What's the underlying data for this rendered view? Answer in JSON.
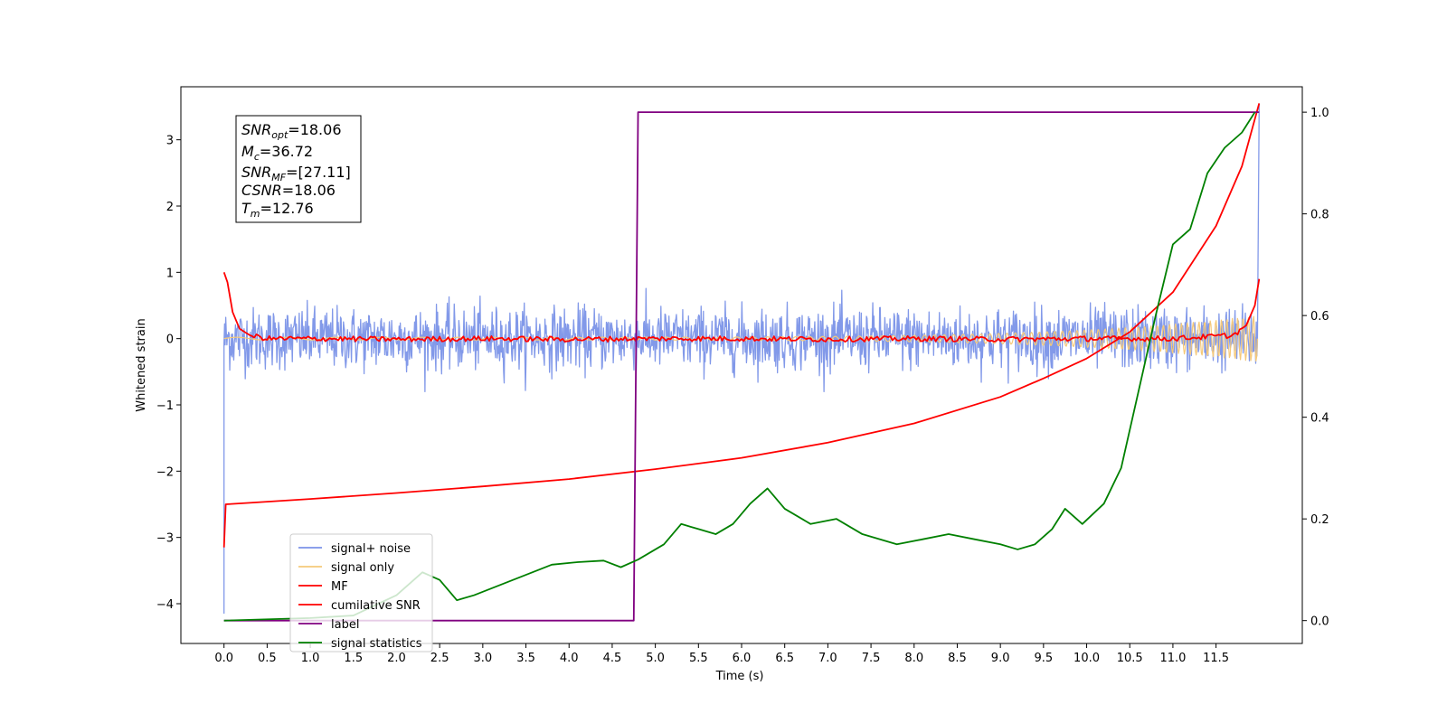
{
  "chart_data": {
    "type": "line",
    "xlabel": "Time (s)",
    "ylabel": "Whitened strain",
    "xlim": [
      -0.5,
      12.5
    ],
    "ylim": [
      -4.6,
      3.8
    ],
    "y2lim": [
      -0.045,
      1.05
    ],
    "x_ticks": [
      "0.0",
      "0.5",
      "1.0",
      "1.5",
      "2.0",
      "2.5",
      "3.0",
      "3.5",
      "4.0",
      "4.5",
      "5.0",
      "5.5",
      "6.0",
      "6.5",
      "7.0",
      "7.5",
      "8.0",
      "8.5",
      "9.0",
      "9.5",
      "10.0",
      "10.5",
      "11.0",
      "11.5"
    ],
    "y_ticks": [
      "−4",
      "−3",
      "−2",
      "−1",
      "0",
      "1",
      "2",
      "3"
    ],
    "y2_ticks": [
      "0.0",
      "0.2",
      "0.4",
      "0.6",
      "0.8",
      "1.0"
    ],
    "annotation": {
      "lines": [
        {
          "base": "SNR",
          "sub": "opt",
          "value": "=18.06"
        },
        {
          "base": "M",
          "sub": "c",
          "value": "=36.72"
        },
        {
          "base": "SNR",
          "sub": "MF",
          "value": "=[27.11]"
        },
        {
          "base": "CSNR",
          "sub": "",
          "value": "=18.06"
        },
        {
          "base": "T",
          "sub": "m",
          "value": "=12.76"
        }
      ]
    },
    "legend": {
      "placement": "lower-left",
      "entries": [
        {
          "label": "signal+ noise",
          "color": "#7b93e8"
        },
        {
          "label": "signal only",
          "color": "#f5c97a"
        },
        {
          "label": "MF",
          "color": "#ff0000"
        },
        {
          "label": "cumilative SNR",
          "color": "#ff0000"
        },
        {
          "label": "label",
          "color": "#800080"
        },
        {
          "label": "signal statistics",
          "color": "#008000"
        }
      ]
    },
    "series": [
      {
        "name": "signal+ noise",
        "axis": "left",
        "color": "#7b93e8",
        "start": {
          "x": 0.0,
          "y": -4.15
        },
        "band": {
          "x": [
            0.0,
            11.98
          ],
          "amplitude": 0.55
        },
        "end": {
          "x": 12.0,
          "y": 3.55
        }
      },
      {
        "name": "signal only",
        "axis": "left",
        "color": "#f5c97a",
        "chirp": {
          "x": [
            0.0,
            11.98
          ],
          "amplitude_start": 0.02,
          "amplitude_end": 0.35
        }
      },
      {
        "name": "MF",
        "axis": "left",
        "color": "#ff0000",
        "x": [
          0.0,
          0.04,
          0.1,
          0.18,
          0.3,
          0.5,
          1.0,
          2.0,
          3.0,
          4.0,
          5.0,
          6.0,
          7.0,
          8.0,
          9.0,
          10.0,
          11.0,
          11.7,
          11.85,
          11.95,
          12.0
        ],
        "y": [
          1.0,
          0.85,
          0.4,
          0.15,
          0.05,
          0.0,
          0.0,
          -0.01,
          0.0,
          -0.01,
          0.0,
          0.0,
          -0.01,
          0.0,
          -0.01,
          0.0,
          0.0,
          0.05,
          0.2,
          0.5,
          0.9
        ]
      },
      {
        "name": "cumilative SNR",
        "axis": "left",
        "color": "#ff0000",
        "x": [
          0.0,
          0.02,
          1.0,
          2.0,
          3.0,
          4.0,
          5.0,
          6.0,
          7.0,
          8.0,
          9.0,
          9.5,
          10.0,
          10.5,
          11.0,
          11.5,
          11.8,
          12.0
        ],
        "y": [
          -3.15,
          -2.5,
          -2.42,
          -2.33,
          -2.23,
          -2.12,
          -1.97,
          -1.8,
          -1.57,
          -1.28,
          -0.88,
          -0.6,
          -0.3,
          0.1,
          0.7,
          1.7,
          2.6,
          3.55
        ]
      },
      {
        "name": "label",
        "axis": "right",
        "color": "#800080",
        "x": [
          0.0,
          4.75,
          4.8,
          11.97,
          12.0
        ],
        "y": [
          0.0,
          0.0,
          1.0,
          1.0,
          1.0
        ]
      },
      {
        "name": "signal statistics",
        "axis": "right",
        "color": "#008000",
        "x": [
          0.0,
          1.0,
          1.5,
          2.0,
          2.2,
          2.3,
          2.5,
          2.7,
          2.9,
          3.2,
          3.5,
          3.8,
          4.1,
          4.4,
          4.6,
          4.8,
          5.1,
          5.3,
          5.5,
          5.7,
          5.9,
          6.1,
          6.3,
          6.5,
          6.8,
          7.1,
          7.4,
          7.8,
          8.1,
          8.4,
          8.7,
          9.0,
          9.2,
          9.4,
          9.6,
          9.75,
          9.95,
          10.2,
          10.4,
          10.6,
          10.8,
          11.0,
          11.2,
          11.4,
          11.6,
          11.8,
          11.95
        ],
        "y": [
          0.0,
          0.005,
          0.01,
          0.05,
          0.08,
          0.095,
          0.08,
          0.04,
          0.05,
          0.07,
          0.09,
          0.11,
          0.115,
          0.118,
          0.105,
          0.12,
          0.15,
          0.19,
          0.18,
          0.17,
          0.19,
          0.23,
          0.26,
          0.22,
          0.19,
          0.2,
          0.17,
          0.15,
          0.16,
          0.17,
          0.16,
          0.15,
          0.14,
          0.15,
          0.18,
          0.22,
          0.19,
          0.23,
          0.3,
          0.45,
          0.6,
          0.74,
          0.77,
          0.88,
          0.93,
          0.96,
          1.0
        ]
      }
    ]
  }
}
